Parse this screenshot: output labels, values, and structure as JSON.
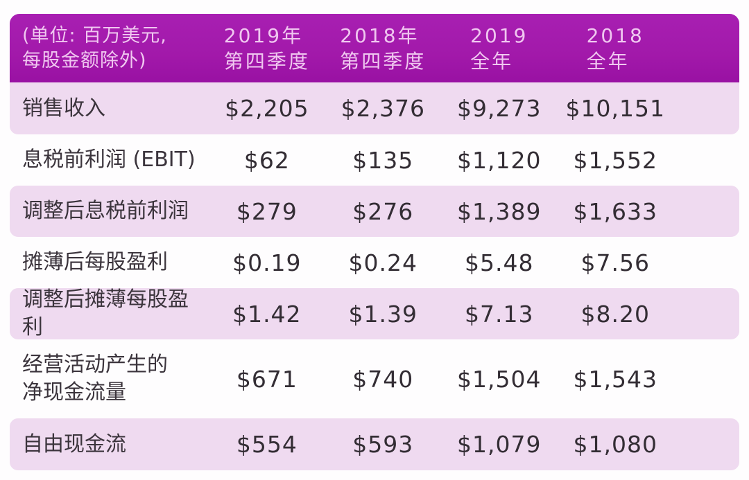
{
  "table": {
    "unit_note": "(单位: 百万美元,\n每股金额除外)",
    "columns": [
      "2019年\n第四季度",
      "2018年\n第四季度",
      "2019\n全年",
      "2018\n全年"
    ],
    "rows": [
      {
        "label": "销售收入",
        "values": [
          "$2,205",
          "$2,376",
          "$9,273",
          "$10,151"
        ]
      },
      {
        "label": "息税前利润 (EBIT)",
        "values": [
          "$62",
          "$135",
          "$1,120",
          "$1,552"
        ]
      },
      {
        "label": "调整后息税前利润",
        "values": [
          "$279",
          "$276",
          "$1,389",
          "$1,633"
        ]
      },
      {
        "label": "摊薄后每股盈利",
        "values": [
          "$0.19",
          "$0.24",
          "$5.48",
          "$7.56"
        ]
      },
      {
        "label": "调整后摊薄每股盈利",
        "values": [
          "$1.42",
          "$1.39",
          "$7.13",
          "$8.20"
        ]
      },
      {
        "label": "经营活动产生的\n净现金流量",
        "values": [
          "$671",
          "$740",
          "$1,504",
          "$1,543"
        ]
      },
      {
        "label": "自由现金流",
        "values": [
          "$554",
          "$593",
          "$1,079",
          "$1,080"
        ]
      }
    ]
  },
  "colors": {
    "header_bg": "#A21BAA",
    "header_text": "#F0C7F0",
    "row_pink_bg": "#EFDAF0",
    "page_bg": "#FEFDFE",
    "body_text": "#39323A"
  },
  "chart_data": {
    "type": "table",
    "unit_note": "(单位: 百万美元, 每股金额除外)",
    "columns": [
      "2019年第四季度",
      "2018年第四季度",
      "2019全年",
      "2018全年"
    ],
    "rows": [
      {
        "metric": "销售收入",
        "values": [
          2205,
          2376,
          9273,
          10151
        ]
      },
      {
        "metric": "息税前利润 (EBIT)",
        "values": [
          62,
          135,
          1120,
          1552
        ]
      },
      {
        "metric": "调整后息税前利润",
        "values": [
          279,
          276,
          1389,
          1633
        ]
      },
      {
        "metric": "摊薄后每股盈利",
        "values": [
          0.19,
          0.24,
          5.48,
          7.56
        ]
      },
      {
        "metric": "调整后摊薄每股盈利",
        "values": [
          1.42,
          1.39,
          7.13,
          8.2
        ]
      },
      {
        "metric": "经营活动产生的净现金流量",
        "values": [
          671,
          740,
          1504,
          1543
        ]
      },
      {
        "metric": "自由现金流",
        "values": [
          554,
          593,
          1079,
          1080
        ]
      }
    ]
  }
}
